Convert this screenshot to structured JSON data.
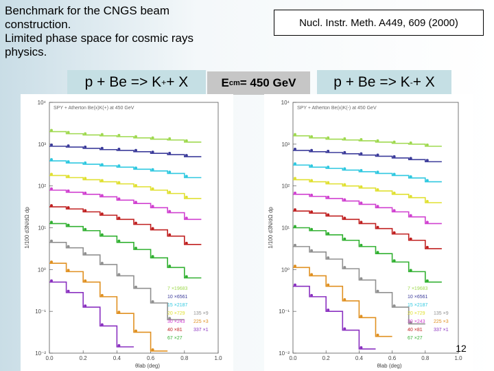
{
  "slide": {
    "intro_lines": [
      "Benchmark for the CNGS beam",
      "construction.",
      "Limited phase space for cosmic rays",
      "physics."
    ],
    "reference": "Nucl. Instr. Meth. A449, 609 (2000)",
    "page_number": "12",
    "ecm": {
      "prefix": "E",
      "sub": "cm",
      "value": " = 450 GeV"
    },
    "reactions": [
      {
        "main": "p + Be => K",
        "sup": "+",
        "tail": " + X"
      },
      {
        "main": "p + Be => K",
        "sup": "-",
        "tail": " + X"
      }
    ]
  },
  "chart_data": [
    {
      "type": "line",
      "title": "SPY + Atherton Be(x)K(+) at 450 GeV",
      "xlabel": "θlab (deg)",
      "ylabel": "1/100 d3N/dΩ dp",
      "x_ticks": [
        "0.0",
        "0.2",
        "0.4",
        "0.6",
        "0.8",
        "1.0"
      ],
      "y_ticks": [
        "10⁴",
        "10³",
        "10²",
        "10¹",
        "10⁰",
        "10⁻¹",
        "10⁻²"
      ],
      "x_range": [
        0.0,
        1.0
      ],
      "y_log_range": [
        -2,
        4
      ],
      "grid": false,
      "legend_position": "bottom-right",
      "legend": [
        {
          "label": "7  ×19683",
          "color": "#9fd94f"
        },
        {
          "label": "10 ×6561",
          "color": "#3b3b9a"
        },
        {
          "label": "15 ×2187",
          "color": "#2ec8e0"
        },
        {
          "label": "20 ×729",
          "color": "#e0e030"
        },
        {
          "label": "30 ×243",
          "color": "#d040d0"
        },
        {
          "label": "40 ×81",
          "color": "#c02020"
        },
        {
          "label": "67 ×27",
          "color": "#30b030"
        },
        {
          "label": "135 ×9",
          "color": "#909090"
        },
        {
          "label": "225 ×3",
          "color": "#e09020"
        },
        {
          "label": "337 ×1",
          "color": "#8a30c0"
        }
      ],
      "series": [
        {
          "color": "#9fd94f",
          "points": [
            [
              0.0,
              3.3
            ],
            [
              0.1,
              3.25
            ],
            [
              0.2,
              3.22
            ],
            [
              0.3,
              3.2
            ],
            [
              0.4,
              3.18
            ],
            [
              0.5,
              3.15
            ],
            [
              0.6,
              3.12
            ],
            [
              0.7,
              3.1
            ],
            [
              0.8,
              3.05
            ]
          ]
        },
        {
          "color": "#3b3b9a",
          "points": [
            [
              0.0,
              2.95
            ],
            [
              0.1,
              2.93
            ],
            [
              0.2,
              2.9
            ],
            [
              0.3,
              2.87
            ],
            [
              0.4,
              2.85
            ],
            [
              0.5,
              2.82
            ],
            [
              0.6,
              2.78
            ],
            [
              0.7,
              2.75
            ],
            [
              0.8,
              2.7
            ]
          ]
        },
        {
          "color": "#2ec8e0",
          "points": [
            [
              0.0,
              2.6
            ],
            [
              0.1,
              2.55
            ],
            [
              0.2,
              2.52
            ],
            [
              0.3,
              2.48
            ],
            [
              0.4,
              2.45
            ],
            [
              0.5,
              2.4
            ],
            [
              0.6,
              2.36
            ],
            [
              0.7,
              2.3
            ],
            [
              0.8,
              2.2
            ]
          ]
        },
        {
          "color": "#e0e030",
          "points": [
            [
              0.0,
              2.25
            ],
            [
              0.1,
              2.2
            ],
            [
              0.2,
              2.15
            ],
            [
              0.3,
              2.1
            ],
            [
              0.4,
              2.05
            ],
            [
              0.5,
              1.98
            ],
            [
              0.6,
              1.9
            ],
            [
              0.7,
              1.82
            ],
            [
              0.8,
              1.7
            ]
          ]
        },
        {
          "color": "#d040d0",
          "points": [
            [
              0.0,
              1.9
            ],
            [
              0.1,
              1.85
            ],
            [
              0.2,
              1.8
            ],
            [
              0.3,
              1.74
            ],
            [
              0.4,
              1.66
            ],
            [
              0.5,
              1.58
            ],
            [
              0.6,
              1.48
            ],
            [
              0.7,
              1.36
            ],
            [
              0.8,
              1.2
            ]
          ]
        },
        {
          "color": "#c02020",
          "points": [
            [
              0.0,
              1.5
            ],
            [
              0.1,
              1.45
            ],
            [
              0.2,
              1.38
            ],
            [
              0.3,
              1.3
            ],
            [
              0.4,
              1.2
            ],
            [
              0.5,
              1.08
            ],
            [
              0.6,
              0.95
            ],
            [
              0.7,
              0.8
            ],
            [
              0.8,
              0.6
            ]
          ]
        },
        {
          "color": "#30b030",
          "points": [
            [
              0.0,
              1.1
            ],
            [
              0.1,
              1.03
            ],
            [
              0.2,
              0.93
            ],
            [
              0.3,
              0.8
            ],
            [
              0.4,
              0.65
            ],
            [
              0.5,
              0.48
            ],
            [
              0.6,
              0.28
            ],
            [
              0.7,
              0.05
            ],
            [
              0.8,
              -0.2
            ]
          ]
        },
        {
          "color": "#909090",
          "points": [
            [
              0.0,
              0.65
            ],
            [
              0.1,
              0.52
            ],
            [
              0.2,
              0.35
            ],
            [
              0.3,
              0.12
            ],
            [
              0.4,
              -0.15
            ],
            [
              0.5,
              -0.45
            ],
            [
              0.6,
              -0.8
            ],
            [
              0.7,
              -1.2
            ]
          ]
        },
        {
          "color": "#e09020",
          "points": [
            [
              0.0,
              0.15
            ],
            [
              0.1,
              -0.05
            ],
            [
              0.2,
              -0.3
            ],
            [
              0.3,
              -0.65
            ],
            [
              0.4,
              -1.05
            ],
            [
              0.5,
              -1.5
            ],
            [
              0.6,
              -1.95
            ]
          ]
        },
        {
          "color": "#8a30c0",
          "points": [
            [
              0.0,
              -0.3
            ],
            [
              0.1,
              -0.55
            ],
            [
              0.2,
              -0.9
            ],
            [
              0.3,
              -1.35
            ],
            [
              0.4,
              -1.85
            ]
          ]
        }
      ]
    },
    {
      "type": "line",
      "title": "SPY + Atherton Be(x)K(-) at 450 GeV",
      "xlabel": "θlab (deg)",
      "ylabel": "1/100 d3N/dΩ dp",
      "x_ticks": [
        "0.0",
        "0.2",
        "0.4",
        "0.6",
        "0.8",
        "1.0"
      ],
      "y_ticks": [
        "10⁴",
        "10³",
        "10²",
        "10¹",
        "10⁰",
        "10⁻¹",
        "10⁻²"
      ],
      "x_range": [
        0.0,
        1.0
      ],
      "y_log_range": [
        -2,
        4
      ],
      "grid": false,
      "legend_position": "bottom-right",
      "legend": [
        {
          "label": "7  ×19683",
          "color": "#9fd94f"
        },
        {
          "label": "10 ×6561",
          "color": "#3b3b9a"
        },
        {
          "label": "15 ×2187",
          "color": "#2ec8e0"
        },
        {
          "label": "20 ×729",
          "color": "#e0e030"
        },
        {
          "label": "30 ×243",
          "color": "#d040d0"
        },
        {
          "label": "40 ×81",
          "color": "#c02020"
        },
        {
          "label": "67 ×27",
          "color": "#30b030"
        },
        {
          "label": "135 ×9",
          "color": "#909090"
        },
        {
          "label": "225 ×3",
          "color": "#e09020"
        },
        {
          "label": "337 ×1",
          "color": "#8a30c0"
        }
      ],
      "series": [
        {
          "color": "#9fd94f",
          "points": [
            [
              0.0,
              3.2
            ],
            [
              0.1,
              3.15
            ],
            [
              0.2,
              3.12
            ],
            [
              0.3,
              3.1
            ],
            [
              0.4,
              3.08
            ],
            [
              0.5,
              3.05
            ],
            [
              0.6,
              3.02
            ],
            [
              0.7,
              3.0
            ],
            [
              0.8,
              2.95
            ]
          ]
        },
        {
          "color": "#3b3b9a",
          "points": [
            [
              0.0,
              2.85
            ],
            [
              0.1,
              2.82
            ],
            [
              0.2,
              2.8
            ],
            [
              0.3,
              2.77
            ],
            [
              0.4,
              2.74
            ],
            [
              0.5,
              2.71
            ],
            [
              0.6,
              2.67
            ],
            [
              0.7,
              2.63
            ],
            [
              0.8,
              2.58
            ]
          ]
        },
        {
          "color": "#2ec8e0",
          "points": [
            [
              0.0,
              2.5
            ],
            [
              0.1,
              2.45
            ],
            [
              0.2,
              2.42
            ],
            [
              0.3,
              2.38
            ],
            [
              0.4,
              2.34
            ],
            [
              0.5,
              2.3
            ],
            [
              0.6,
              2.25
            ],
            [
              0.7,
              2.19
            ],
            [
              0.8,
              2.1
            ]
          ]
        },
        {
          "color": "#e0e030",
          "points": [
            [
              0.0,
              2.15
            ],
            [
              0.1,
              2.1
            ],
            [
              0.2,
              2.05
            ],
            [
              0.3,
              2.0
            ],
            [
              0.4,
              1.95
            ],
            [
              0.5,
              1.88
            ],
            [
              0.6,
              1.8
            ],
            [
              0.7,
              1.72
            ],
            [
              0.8,
              1.6
            ]
          ]
        },
        {
          "color": "#d040d0",
          "points": [
            [
              0.0,
              1.8
            ],
            [
              0.1,
              1.75
            ],
            [
              0.2,
              1.7
            ],
            [
              0.3,
              1.64
            ],
            [
              0.4,
              1.56
            ],
            [
              0.5,
              1.48
            ],
            [
              0.6,
              1.38
            ],
            [
              0.7,
              1.26
            ],
            [
              0.8,
              1.1
            ]
          ]
        },
        {
          "color": "#c02020",
          "points": [
            [
              0.0,
              1.4
            ],
            [
              0.1,
              1.35
            ],
            [
              0.2,
              1.28
            ],
            [
              0.3,
              1.2
            ],
            [
              0.4,
              1.1
            ],
            [
              0.5,
              0.98
            ],
            [
              0.6,
              0.85
            ],
            [
              0.7,
              0.7
            ],
            [
              0.8,
              0.5
            ]
          ]
        },
        {
          "color": "#30b030",
          "points": [
            [
              0.0,
              1.0
            ],
            [
              0.1,
              0.93
            ],
            [
              0.2,
              0.83
            ],
            [
              0.3,
              0.7
            ],
            [
              0.4,
              0.55
            ],
            [
              0.5,
              0.38
            ],
            [
              0.6,
              0.18
            ],
            [
              0.7,
              -0.05
            ],
            [
              0.8,
              -0.3
            ]
          ]
        },
        {
          "color": "#909090",
          "points": [
            [
              0.0,
              0.55
            ],
            [
              0.1,
              0.42
            ],
            [
              0.2,
              0.25
            ],
            [
              0.3,
              0.02
            ],
            [
              0.4,
              -0.25
            ],
            [
              0.5,
              -0.55
            ],
            [
              0.6,
              -0.9
            ],
            [
              0.7,
              -1.3
            ]
          ]
        },
        {
          "color": "#e09020",
          "points": [
            [
              0.0,
              0.05
            ],
            [
              0.1,
              -0.15
            ],
            [
              0.2,
              -0.4
            ],
            [
              0.3,
              -0.75
            ],
            [
              0.4,
              -1.15
            ],
            [
              0.5,
              -1.6
            ]
          ]
        },
        {
          "color": "#8a30c0",
          "points": [
            [
              0.0,
              -0.4
            ],
            [
              0.1,
              -0.65
            ],
            [
              0.2,
              -1.0
            ],
            [
              0.3,
              -1.45
            ],
            [
              0.4,
              -1.9
            ]
          ]
        }
      ]
    }
  ]
}
